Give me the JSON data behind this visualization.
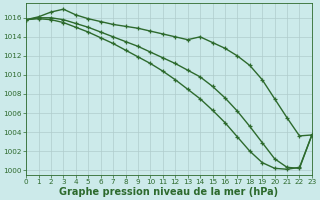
{
  "series": [
    {
      "name": "top_line",
      "x": [
        0,
        1,
        2,
        3,
        4,
        5,
        6,
        7,
        8,
        9,
        10,
        11,
        12,
        13,
        14,
        15,
        16,
        17,
        18,
        19,
        20,
        21,
        22,
        23
      ],
      "y": [
        1015.8,
        1016.1,
        1016.6,
        1016.9,
        1016.3,
        1015.9,
        1015.6,
        1015.3,
        1015.1,
        1014.9,
        1014.6,
        1014.3,
        1014.0,
        1013.7,
        1014.0,
        1013.4,
        1012.8,
        1012.0,
        1011.0,
        1009.5,
        1007.5,
        1005.5,
        1003.6,
        1003.7
      ],
      "color": "#2d6a2d",
      "linewidth": 1.0,
      "marker": "+"
    },
    {
      "name": "mid_line",
      "x": [
        0,
        1,
        2,
        3,
        4,
        5,
        6,
        7,
        8,
        9,
        10,
        11,
        12,
        13,
        14,
        15,
        16,
        17,
        18,
        19,
        20,
        21,
        22,
        23
      ],
      "y": [
        1015.8,
        1016.0,
        1016.0,
        1015.8,
        1015.4,
        1015.0,
        1014.5,
        1014.0,
        1013.5,
        1013.0,
        1012.4,
        1011.8,
        1011.2,
        1010.5,
        1009.8,
        1008.8,
        1007.6,
        1006.2,
        1004.6,
        1002.9,
        1001.2,
        1000.3,
        1000.2,
        1003.7
      ],
      "color": "#2d6a2d",
      "linewidth": 1.0,
      "marker": "+"
    },
    {
      "name": "bot_line",
      "x": [
        0,
        1,
        2,
        3,
        4,
        5,
        6,
        7,
        8,
        9,
        10,
        11,
        12,
        13,
        14,
        15,
        16,
        17,
        18,
        19,
        20,
        21,
        22,
        23
      ],
      "y": [
        1015.8,
        1015.9,
        1015.8,
        1015.5,
        1015.0,
        1014.5,
        1013.9,
        1013.3,
        1012.6,
        1011.9,
        1011.2,
        1010.4,
        1009.5,
        1008.5,
        1007.5,
        1006.3,
        1005.0,
        1003.5,
        1002.0,
        1000.8,
        1000.2,
        1000.1,
        1000.3,
        1003.7
      ],
      "color": "#2d6a2d",
      "linewidth": 1.0,
      "marker": "+"
    }
  ],
  "xlim": [
    0,
    23
  ],
  "ylim": [
    999.5,
    1017.5
  ],
  "yticks": [
    1000,
    1002,
    1004,
    1006,
    1008,
    1010,
    1012,
    1014,
    1016
  ],
  "xticks": [
    0,
    1,
    2,
    3,
    4,
    5,
    6,
    7,
    8,
    9,
    10,
    11,
    12,
    13,
    14,
    15,
    16,
    17,
    18,
    19,
    20,
    21,
    22,
    23
  ],
  "xlabel": "Graphe pression niveau de la mer (hPa)",
  "bg_color": "#cceaea",
  "grid_color": "#b0cccc",
  "axis_color": "#2d6a2d",
  "label_color": "#2d6a2d",
  "xlabel_color": "#2d6a2d",
  "tick_fontsize": 5.2,
  "xlabel_fontsize": 7.0
}
